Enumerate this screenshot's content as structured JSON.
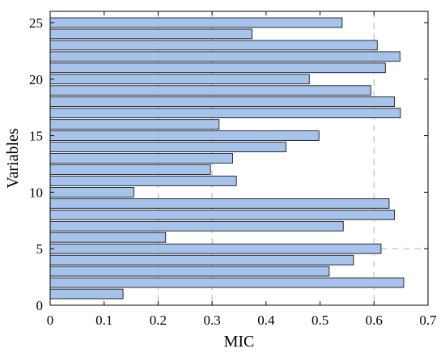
{
  "chart_data": {
    "type": "bar",
    "orientation": "horizontal",
    "xlabel": "MIC",
    "ylabel": "Variables",
    "xlim": [
      0,
      0.7
    ],
    "ylim": [
      0,
      26
    ],
    "xticks": [
      "0",
      "0.1",
      "0.2",
      "0.3",
      "0.4",
      "0.5",
      "0.6",
      "0.7"
    ],
    "yticks": [
      "0",
      "5",
      "10",
      "15",
      "20",
      "25"
    ],
    "grid": "dashed vertical reference lines at 0.2, 0.3, 0.6",
    "categories": [
      1,
      2,
      3,
      4,
      5,
      6,
      7,
      8,
      9,
      10,
      11,
      12,
      13,
      14,
      15,
      16,
      17,
      18,
      19,
      20,
      21,
      22,
      23,
      24,
      25
    ],
    "values": [
      0.135,
      0.655,
      0.517,
      0.562,
      0.613,
      0.214,
      0.543,
      0.638,
      0.628,
      0.155,
      0.345,
      0.297,
      0.338,
      0.437,
      0.498,
      0.313,
      0.649,
      0.638,
      0.594,
      0.48,
      0.621,
      0.648,
      0.606,
      0.374,
      0.541
    ],
    "bar_color": "#a6c3ec",
    "bar_edge_color": "#000000"
  }
}
